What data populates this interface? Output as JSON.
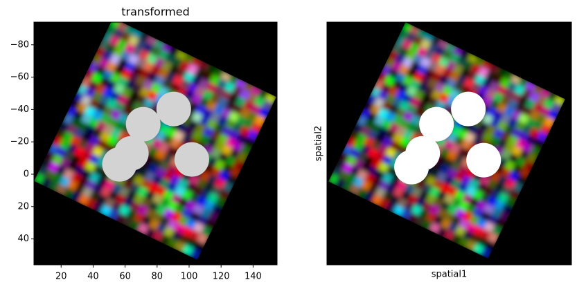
{
  "chart_data": [
    {
      "type": "scatter",
      "title": "transformed",
      "x": [
        90.4,
        71.3,
        63.9,
        56.5,
        101.7
      ],
      "y": [
        -40.3,
        -30.9,
        -12.9,
        -6.1,
        -9.1
      ],
      "color": "#d3d3d3",
      "xlim": [
        3,
        155
      ],
      "ylim": [
        56,
        -94
      ],
      "xticks": [
        20,
        40,
        60,
        80,
        100,
        120,
        140
      ],
      "yticks": [
        {
          "value": -80,
          "label": "−80"
        },
        {
          "value": -60,
          "label": "−60"
        },
        {
          "value": -40,
          "label": "−40"
        },
        {
          "value": -20,
          "label": "−20"
        },
        0,
        20,
        40
      ]
    },
    {
      "type": "scatter",
      "xlabel": "spatial1",
      "ylabel": "spatial2",
      "x": [
        90.9,
        71.1,
        62.5,
        55.6,
        100.4
      ],
      "y": [
        -40.3,
        -30.9,
        -12.9,
        -4.4,
        -8.7
      ],
      "color": "#ffffff",
      "xlim": [
        3,
        155
      ],
      "ylim": [
        56,
        -94
      ]
    }
  ]
}
